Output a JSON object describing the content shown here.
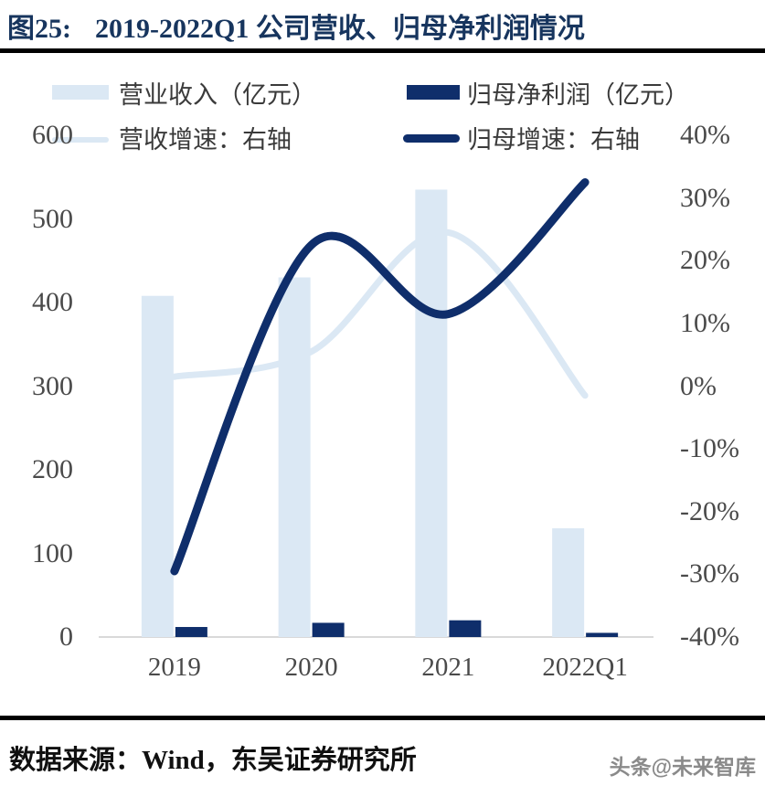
{
  "header": {
    "figure_label": "图25:",
    "title": "2019-2022Q1 公司营收、归母净利润情况"
  },
  "chart_data": {
    "type": "bar+line combo (dual axis)",
    "categories": [
      "2019",
      "2020",
      "2021",
      "2022Q1"
    ],
    "series": [
      {
        "name": "营业收入（亿元）",
        "type": "bar",
        "axis": "left",
        "color": "#dbe8f4",
        "values": [
          408,
          430,
          535,
          130
        ]
      },
      {
        "name": "归母净利润（亿元）",
        "type": "bar",
        "axis": "left",
        "color": "#0f2e6b",
        "values": [
          12,
          17,
          20,
          5
        ]
      },
      {
        "name": "营收增速：右轴",
        "type": "line",
        "axis": "right",
        "color": "#dbe8f4",
        "values": [
          1.5,
          5.5,
          24.5,
          -1.5
        ]
      },
      {
        "name": "归母增速：右轴",
        "type": "line",
        "axis": "right",
        "color": "#0f2e6b",
        "values": [
          -29.5,
          22.5,
          11.5,
          32.5
        ]
      }
    ],
    "left_axis": {
      "min": 0,
      "max": 600,
      "ticks": [
        "600",
        "500",
        "400",
        "300",
        "200",
        "100",
        "0"
      ]
    },
    "right_axis": {
      "min": -40,
      "max": 40,
      "ticks": [
        "40%",
        "30%",
        "20%",
        "10%",
        "0%",
        "-10%",
        "-20%",
        "-30%",
        "-40%"
      ]
    },
    "legend_position": "top",
    "grid": false
  },
  "footer": {
    "source_label": "数据来源：",
    "source_text": "Wind，东吴证券研究所",
    "watermark": "头条@未来智库"
  },
  "colors": {
    "accent_navy": "#0f2e6b",
    "light_blue": "#dbe8f4",
    "title_navy": "#17355e",
    "axis_text": "#4a4a4a",
    "baseline_gray": "#d9d9d9",
    "divider_black": "#000000",
    "watermark_gray": "#8a8a8a"
  }
}
